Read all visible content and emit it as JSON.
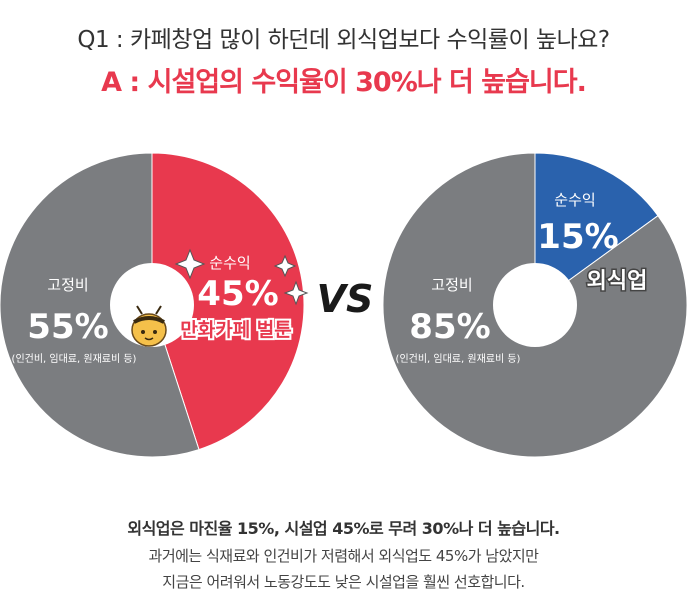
{
  "header": {
    "question": "Q1 : 카페창업 많이 하던데 외식업보다 수익률이 높나요?",
    "answer": "A : 시설업의 수익율이 30%나 더 높습니다."
  },
  "chart_data": [
    {
      "type": "pie",
      "title": "",
      "slices": [
        {
          "label": "순수익",
          "value": 45,
          "value_text": "45%",
          "color": "#e8394e"
        },
        {
          "label": "고정비",
          "value": 55,
          "value_text": "55%",
          "note": "(인건비, 임대료, 원재료비 등)",
          "color": "#7b7d80"
        }
      ],
      "caption": "만화카페 벌툰"
    },
    {
      "type": "pie",
      "title": "",
      "slices": [
        {
          "label": "순수익",
          "value": 15,
          "value_text": "15%",
          "color": "#2a62ad"
        },
        {
          "label": "고정비",
          "value": 85,
          "value_text": "85%",
          "note": "(인건비, 임대료, 원재료비 등)",
          "color": "#7b7d80"
        }
      ],
      "caption": "외식업"
    }
  ],
  "vs_label": "VS",
  "footer": {
    "line1": "외식업은 마진율 15%, 시설업 45%로 무려 30%나 더 높습니다.",
    "line2": "과거에는 식재료와 인건비가 저렴해서 외식업도 45%가 남았지만",
    "line3": "지금은 어려워서 노동강도도 낮은 시설업을 훨씬 선호합니다."
  },
  "colors": {
    "accent": "#e8394e",
    "blue": "#2a62ad",
    "gray": "#7b7d80"
  }
}
